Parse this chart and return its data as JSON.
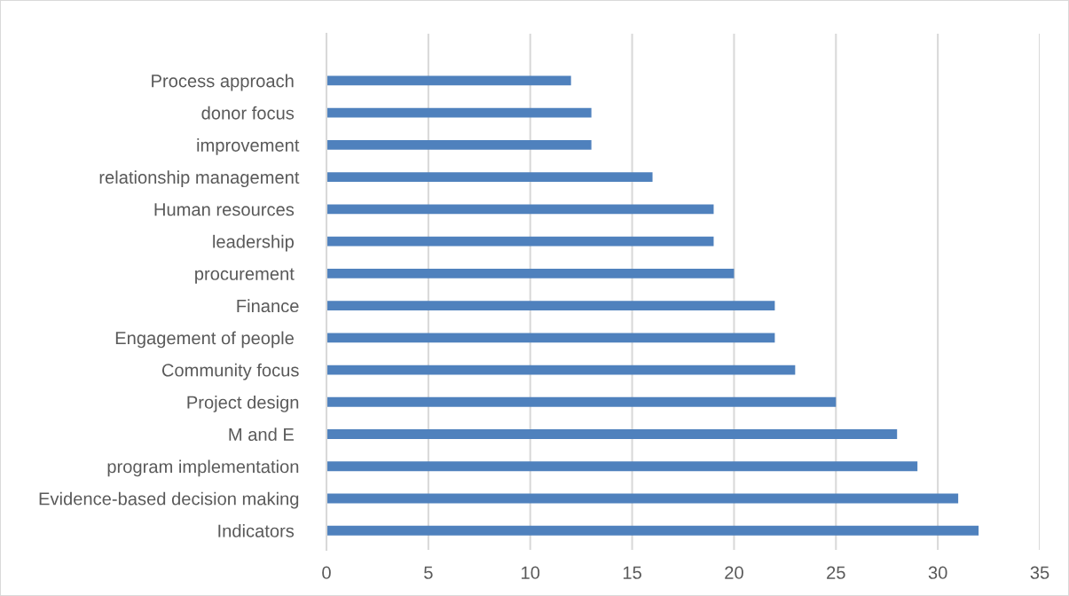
{
  "chart_data": {
    "type": "bar",
    "orientation": "horizontal",
    "categories": [
      "Process approach ",
      "donor focus ",
      "improvement",
      "relationship management",
      "Human resources ",
      "leadership ",
      "procurement ",
      "Finance",
      "Engagement of people ",
      "Community focus",
      "Project design",
      "M and E ",
      "program implementation",
      "Evidence-based decision making",
      "Indicators "
    ],
    "values": [
      12,
      13,
      13,
      16,
      19,
      19,
      20,
      22,
      22,
      23,
      25,
      28,
      29,
      31,
      32
    ],
    "color": "#4f81bd",
    "xlim": [
      0,
      35
    ],
    "xticks": [
      0,
      5,
      10,
      15,
      20,
      25,
      30,
      35
    ],
    "grid": "x"
  }
}
